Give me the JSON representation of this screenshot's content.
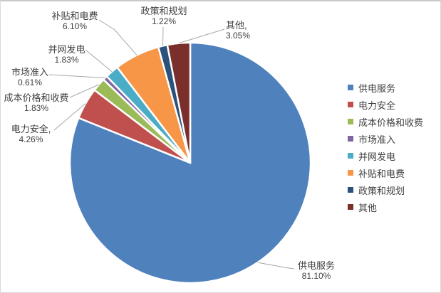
{
  "chart_data": {
    "type": "pie",
    "title": "",
    "legend_position": "right",
    "start_angle_deg": 0,
    "direction": "clockwise",
    "categories": [
      "供电服务",
      "电力安全",
      "成本价格和收费",
      "市场准入",
      "并网发电",
      "补贴和电费",
      "政策和规划",
      "其他"
    ],
    "values": [
      81.1,
      4.26,
      1.83,
      0.61,
      1.83,
      6.1,
      1.22,
      3.05
    ],
    "colors": [
      "#4F81BD",
      "#C0504D",
      "#9BBB59",
      "#8064A2",
      "#4BACC6",
      "#F79646",
      "#2A527A",
      "#7B2F2B"
    ],
    "leader_line_color": "#a9a6a6",
    "labels": [
      {
        "line1": "供电服务",
        "line2": "81.10%"
      },
      {
        "line1": "电力安全,",
        "line2": "4.26%"
      },
      {
        "line1": "成本价格和收费",
        "line2": "1.83%"
      },
      {
        "line1": "市场准入",
        "line2": "0.61%"
      },
      {
        "line1": "并网发电",
        "line2": "1.83%"
      },
      {
        "line1": "补贴和电费",
        "line2": "6.10%"
      },
      {
        "line1": "政策和规划",
        "line2": "1.22%"
      },
      {
        "line1": "其他,",
        "line2": "3.05%"
      }
    ],
    "legend": [
      "供电服务",
      "电力安全",
      "成本价格和收费",
      "市场准入",
      "并网发电",
      "补贴和电费",
      "政策和规划",
      "其他"
    ]
  }
}
